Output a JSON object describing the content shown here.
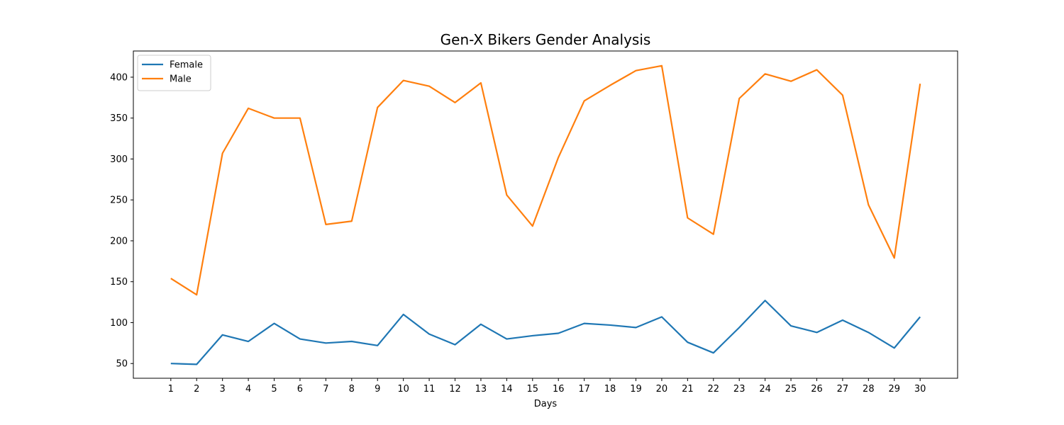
{
  "chart_data": {
    "type": "line",
    "title": "Gen-X Bikers Gender Analysis",
    "xlabel": "Days",
    "ylabel": "",
    "x": [
      1,
      2,
      3,
      4,
      5,
      6,
      7,
      8,
      9,
      10,
      11,
      12,
      13,
      14,
      15,
      16,
      17,
      18,
      19,
      20,
      21,
      22,
      23,
      24,
      25,
      26,
      27,
      28,
      29,
      30
    ],
    "xlim": [
      -0.45,
      31.45
    ],
    "ylim": [
      32,
      432
    ],
    "yticks": [
      50,
      100,
      150,
      200,
      250,
      300,
      350,
      400
    ],
    "grid": false,
    "legend_position": "top-left",
    "series": [
      {
        "name": "Female",
        "color": "#1f77b4",
        "values": [
          50,
          49,
          85,
          77,
          99,
          80,
          75,
          77,
          72,
          110,
          86,
          73,
          98,
          80,
          84,
          87,
          99,
          97,
          94,
          107,
          76,
          63,
          94,
          127,
          96,
          88,
          103,
          88,
          69,
          107
        ]
      },
      {
        "name": "Male",
        "color": "#ff7f0e",
        "values": [
          154,
          134,
          307,
          362,
          350,
          350,
          220,
          224,
          363,
          396,
          389,
          369,
          393,
          256,
          218,
          302,
          371,
          390,
          408,
          414,
          228,
          208,
          374,
          404,
          395,
          409,
          378,
          244,
          179,
          392
        ]
      }
    ]
  }
}
